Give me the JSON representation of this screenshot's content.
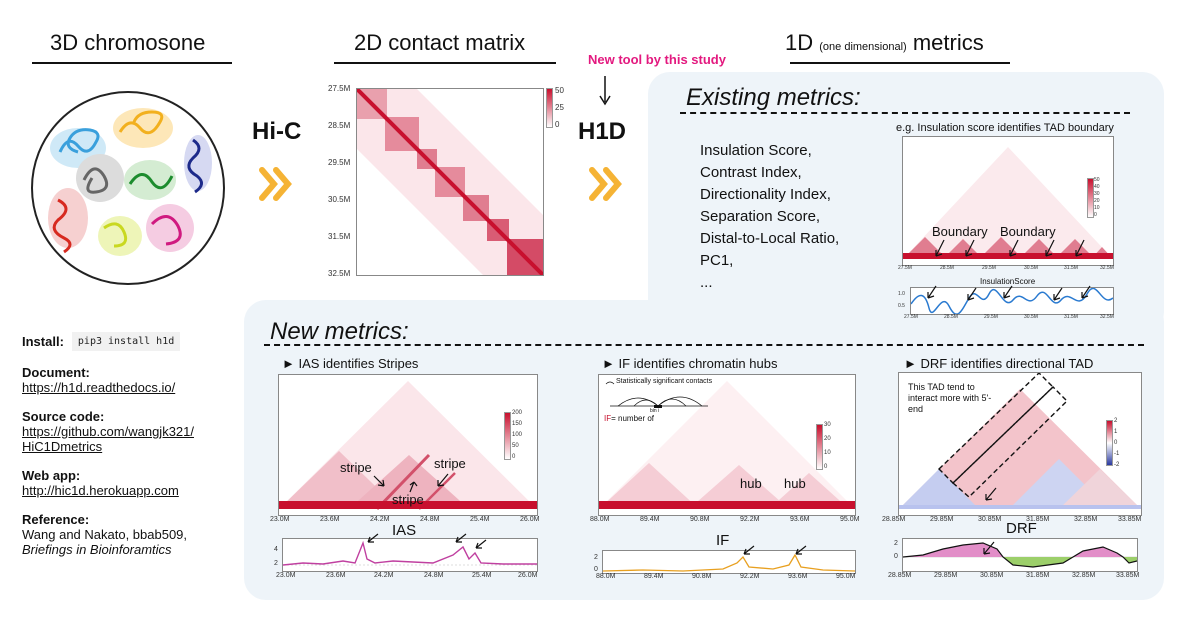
{
  "headings": {
    "chromosome": "3D chromosone",
    "matrix": "2D contact matrix",
    "metrics_main": "1D",
    "metrics_paren": "(one dimensional)",
    "metrics_tail": "metrics"
  },
  "flow": {
    "hic": "Hi-C",
    "h1d": "H1D",
    "new_tool": "New tool by this study"
  },
  "matrix_plot": {
    "y_ticks": [
      "27.5M",
      "28.5M",
      "29.5M",
      "30.5M",
      "31.5M",
      "32.5M"
    ],
    "colorbar_ticks": [
      "50",
      "25",
      "0"
    ]
  },
  "existing": {
    "title": "Existing metrics:",
    "items": [
      "Insulation Score,",
      "Contrast Index,",
      "Directionality Index,",
      "Separation Score,",
      "Distal-to-Local Ratio,",
      "PC1,",
      "..."
    ],
    "example_caption": "e.g. Insulation score identifies TAD boundary",
    "boundary_label_1": "Boundary",
    "boundary_label_2": "Boundary",
    "ticks": [
      "27.5M",
      "28.5M",
      "29.5M",
      "30.5M",
      "31.5M",
      "32.5M"
    ],
    "colorbar_ticks": [
      "50",
      "40",
      "30",
      "20",
      "10",
      "0"
    ],
    "track_title": "InsulationScore",
    "track_y": [
      "1.0",
      "0.5"
    ],
    "track_ticks": [
      "27.5M",
      "28.5M",
      "29.5M",
      "30.5M",
      "31.5M",
      "32.5M"
    ]
  },
  "new": {
    "title": "New metrics:",
    "ias": {
      "caption": "► IAS identifies Stripes",
      "stripe_1": "stripe",
      "stripe_2": "stripe",
      "stripe_3": "stripe",
      "ticks": [
        "23.0M",
        "23.6M",
        "24.2M",
        "24.8M",
        "25.4M",
        "26.0M"
      ],
      "colorbar_ticks": [
        "200",
        "150",
        "100",
        "50",
        "0"
      ],
      "track_label": "IAS",
      "track_y": [
        "4",
        "2"
      ],
      "track_ticks": [
        "23.0M",
        "23.6M",
        "24.2M",
        "24.8M",
        "25.4M",
        "26.0M"
      ]
    },
    "if": {
      "caption": "► IF identifies chromatin hubs",
      "legend_1": "Statistically significant contacts",
      "bin_label": "bin i",
      "formula_prefix": "IF",
      "formula_rest": "= number of",
      "hub_1": "hub",
      "hub_2": "hub",
      "ticks": [
        "88.0M",
        "89.4M",
        "90.8M",
        "92.2M",
        "93.6M",
        "95.0M"
      ],
      "colorbar_ticks": [
        "30",
        "20",
        "10",
        "0"
      ],
      "track_label": "IF",
      "track_y": [
        "2",
        "0"
      ],
      "track_ticks": [
        "88.0M",
        "89.4M",
        "90.8M",
        "92.2M",
        "93.6M",
        "95.0M"
      ]
    },
    "drf": {
      "caption": "► DRF identifies directional TAD",
      "note": "This TAD tend to interact more with 5'- end",
      "ticks": [
        "28.85M",
        "29.85M",
        "30.85M",
        "31.85M",
        "32.85M",
        "33.85M"
      ],
      "colorbar_ticks": [
        "2",
        "1",
        "0",
        "-1",
        "-2"
      ],
      "track_label": "DRF",
      "track_y": [
        "2",
        "0"
      ],
      "track_ticks": [
        "28.85M",
        "29.85M",
        "30.85M",
        "31.85M",
        "32.85M",
        "33.85M"
      ]
    }
  },
  "sidebar": {
    "install_label": "Install:",
    "install_cmd": "pip3 install h1d",
    "doc_label": "Document:",
    "doc_link": "https://h1d.readthedocs.io/",
    "source_label": "Source code:",
    "source_link_1": "https://github.com/wangjk321/",
    "source_link_2": "HiC1Dmetrics",
    "webapp_label": "Web app:",
    "webapp_link": "http://hic1d.herokuapp.com",
    "ref_label": "Reference:",
    "ref_line": "Wang and Nakato, bbab509,",
    "ref_journal": "Briefings in Bioinforamtics"
  },
  "colors": {
    "accent_pink": "#e3197f",
    "heat_red": "#c8102e",
    "arrow_orange": "#f5b335",
    "panel_bg": "#eef4f9",
    "ias_line": "#c040a0",
    "if_line": "#e8a020",
    "is_line": "#2a7ad0"
  }
}
